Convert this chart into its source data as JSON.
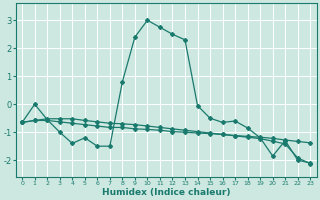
{
  "xlabel": "Humidex (Indice chaleur)",
  "ylabel": "",
  "background_color": "#cde8e0",
  "line_color": "#1a7a6e",
  "grid_color": "#ffffff",
  "xlim": [
    -0.5,
    23.5
  ],
  "ylim": [
    -2.6,
    3.6
  ],
  "yticks": [
    -2,
    -1,
    0,
    1,
    2,
    3
  ],
  "xticks": [
    0,
    1,
    2,
    3,
    4,
    5,
    6,
    7,
    8,
    9,
    10,
    11,
    12,
    13,
    14,
    15,
    16,
    17,
    18,
    19,
    20,
    21,
    22,
    23
  ],
  "line1_x": [
    0,
    1,
    2,
    3,
    4,
    5,
    6,
    7,
    8,
    9,
    10,
    11,
    12,
    13,
    14,
    15,
    16,
    17,
    18,
    19,
    20,
    21,
    22,
    23
  ],
  "line1_y": [
    -0.65,
    0.0,
    -0.55,
    -1.0,
    -1.4,
    -1.2,
    -1.5,
    -1.5,
    0.8,
    2.4,
    3.0,
    2.75,
    2.5,
    2.3,
    -0.05,
    -0.5,
    -0.65,
    -0.6,
    -0.85,
    -1.2,
    -1.85,
    -1.3,
    -2.0,
    -2.1
  ],
  "line2_x": [
    0,
    1,
    2,
    3,
    4,
    5,
    6,
    7,
    8,
    9,
    10,
    11,
    12,
    13,
    14,
    15,
    16,
    17,
    18,
    19,
    20,
    21,
    22,
    23
  ],
  "line2_y": [
    -0.65,
    -0.58,
    -0.58,
    -0.63,
    -0.68,
    -0.73,
    -0.78,
    -0.83,
    -0.83,
    -0.88,
    -0.9,
    -0.93,
    -0.98,
    -1.0,
    -1.03,
    -1.05,
    -1.08,
    -1.12,
    -1.15,
    -1.18,
    -1.22,
    -1.28,
    -1.33,
    -1.38
  ],
  "line3_x": [
    0,
    1,
    2,
    3,
    4,
    5,
    6,
    7,
    8,
    9,
    10,
    11,
    12,
    13,
    14,
    15,
    16,
    17,
    18,
    19,
    20,
    21,
    22,
    23
  ],
  "line3_y": [
    -0.65,
    -0.58,
    -0.52,
    -0.52,
    -0.52,
    -0.58,
    -0.63,
    -0.68,
    -0.7,
    -0.73,
    -0.78,
    -0.83,
    -0.88,
    -0.93,
    -0.98,
    -1.03,
    -1.08,
    -1.13,
    -1.18,
    -1.23,
    -1.32,
    -1.42,
    -1.92,
    -2.12
  ]
}
